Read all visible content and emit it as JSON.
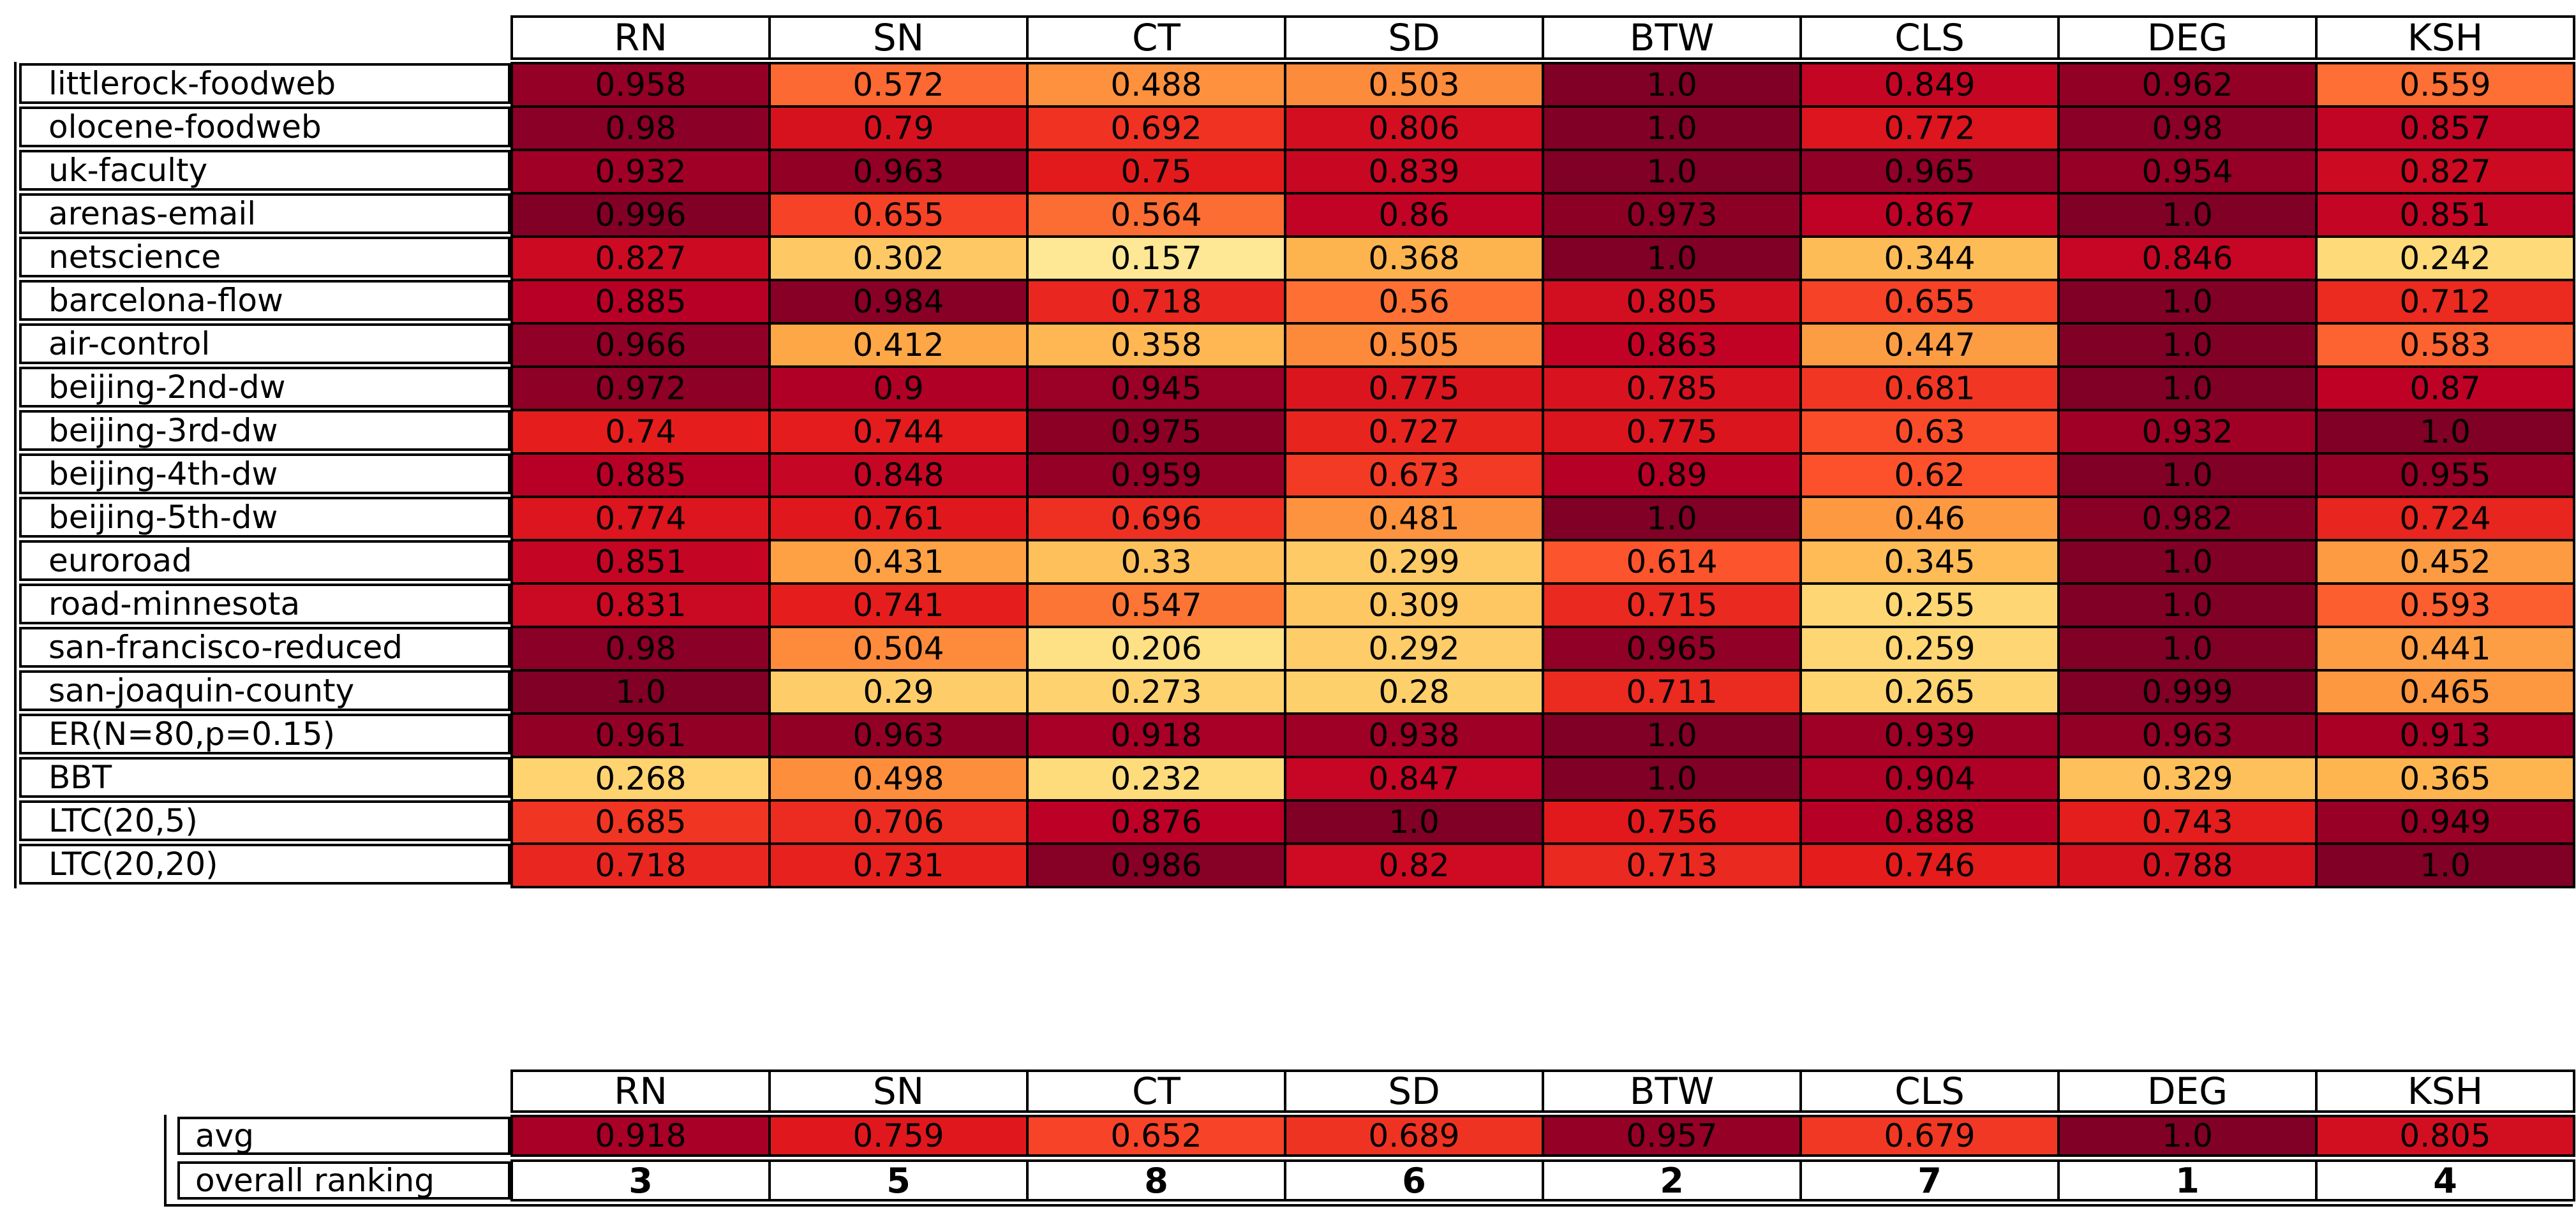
{
  "chart_data": {
    "type": "heatmap",
    "title": "",
    "colormap": "YlOrRd",
    "color_range": [
      0,
      1
    ],
    "columns": [
      "RN",
      "SN",
      "CT",
      "SD",
      "BTW",
      "CLS",
      "DEG",
      "KSH"
    ],
    "rows": [
      "littlerock-foodweb",
      "olocene-foodweb",
      "uk-faculty",
      "arenas-email",
      "netscience",
      "barcelona-flow",
      "air-control",
      "beijing-2nd-dw",
      "beijing-3rd-dw",
      "beijing-4th-dw",
      "beijing-5th-dw",
      "euroroad",
      "road-minnesota",
      "san-francisco-reduced",
      "san-joaquin-county",
      "ER(N=80,p=0.15)",
      "BBT",
      "LTC(20,5)",
      "LTC(20,20)"
    ],
    "values": [
      [
        0.958,
        0.572,
        0.488,
        0.503,
        1.0,
        0.849,
        0.962,
        0.559
      ],
      [
        0.98,
        0.79,
        0.692,
        0.806,
        1.0,
        0.772,
        0.98,
        0.857
      ],
      [
        0.932,
        0.963,
        0.75,
        0.839,
        1.0,
        0.965,
        0.954,
        0.827
      ],
      [
        0.996,
        0.655,
        0.564,
        0.86,
        0.973,
        0.867,
        1.0,
        0.851
      ],
      [
        0.827,
        0.302,
        0.157,
        0.368,
        1.0,
        0.344,
        0.846,
        0.242
      ],
      [
        0.885,
        0.984,
        0.718,
        0.56,
        0.805,
        0.655,
        1.0,
        0.712
      ],
      [
        0.966,
        0.412,
        0.358,
        0.505,
        0.863,
        0.447,
        1.0,
        0.583
      ],
      [
        0.972,
        0.9,
        0.945,
        0.775,
        0.785,
        0.681,
        1.0,
        0.87
      ],
      [
        0.74,
        0.744,
        0.975,
        0.727,
        0.775,
        0.63,
        0.932,
        1.0
      ],
      [
        0.885,
        0.848,
        0.959,
        0.673,
        0.89,
        0.62,
        1.0,
        0.955
      ],
      [
        0.774,
        0.761,
        0.696,
        0.481,
        1.0,
        0.46,
        0.982,
        0.724
      ],
      [
        0.851,
        0.431,
        0.33,
        0.299,
        0.614,
        0.345,
        1.0,
        0.452
      ],
      [
        0.831,
        0.741,
        0.547,
        0.309,
        0.715,
        0.255,
        1.0,
        0.593
      ],
      [
        0.98,
        0.504,
        0.206,
        0.292,
        0.965,
        0.259,
        1.0,
        0.441
      ],
      [
        1.0,
        0.29,
        0.273,
        0.28,
        0.711,
        0.265,
        0.999,
        0.465
      ],
      [
        0.961,
        0.963,
        0.918,
        0.938,
        1.0,
        0.939,
        0.963,
        0.913
      ],
      [
        0.268,
        0.498,
        0.232,
        0.847,
        1.0,
        0.904,
        0.329,
        0.365
      ],
      [
        0.685,
        0.706,
        0.876,
        1.0,
        0.756,
        0.888,
        0.743,
        0.949
      ],
      [
        0.718,
        0.731,
        0.986,
        0.82,
        0.713,
        0.746,
        0.788,
        1.0
      ]
    ],
    "summary": {
      "avg_label": "avg",
      "avg": [
        0.918,
        0.759,
        0.652,
        0.689,
        0.957,
        0.679,
        1.0,
        0.805
      ],
      "ranking_label": "overall ranking",
      "ranking": [
        3,
        5,
        8,
        6,
        2,
        7,
        1,
        4
      ]
    }
  }
}
